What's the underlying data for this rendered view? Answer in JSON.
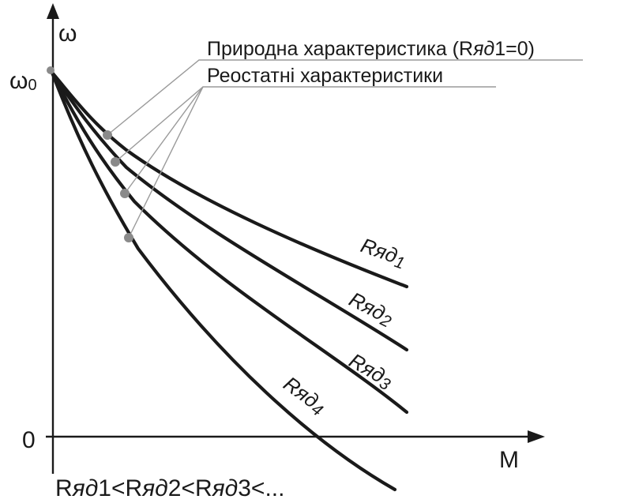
{
  "axes": {
    "y_label": "ω",
    "y_tick_top_main": "ω",
    "y_tick_top_sub": "0",
    "origin_label": "0",
    "x_label": "M"
  },
  "annotations": {
    "natural": {
      "pre": "Природна характеристика (R",
      "italic": "яд",
      "post": "1=0)"
    },
    "rheostat": "Реостатні характеристики"
  },
  "curves": [
    {
      "id": "r1",
      "r": "R",
      "italic": "яд",
      "num": "1"
    },
    {
      "id": "r2",
      "r": "R",
      "italic": "яд",
      "num": "2"
    },
    {
      "id": "r3",
      "r": "R",
      "italic": "яд",
      "num": "3"
    },
    {
      "id": "r4",
      "r": "R",
      "italic": "яд",
      "num": "4"
    }
  ],
  "footer": {
    "parts": [
      {
        "t": "R",
        "i": false
      },
      {
        "t": "яд",
        "i": true
      },
      {
        "t": "1<R",
        "i": false
      },
      {
        "t": "яд",
        "i": true
      },
      {
        "t": "2<R",
        "i": false
      },
      {
        "t": "яд",
        "i": true
      },
      {
        "t": "3<...",
        "i": false
      }
    ]
  },
  "colors": {
    "ink": "#1a1a1a",
    "leader": "#9a9a9a",
    "dot": "#8a8a8a"
  }
}
